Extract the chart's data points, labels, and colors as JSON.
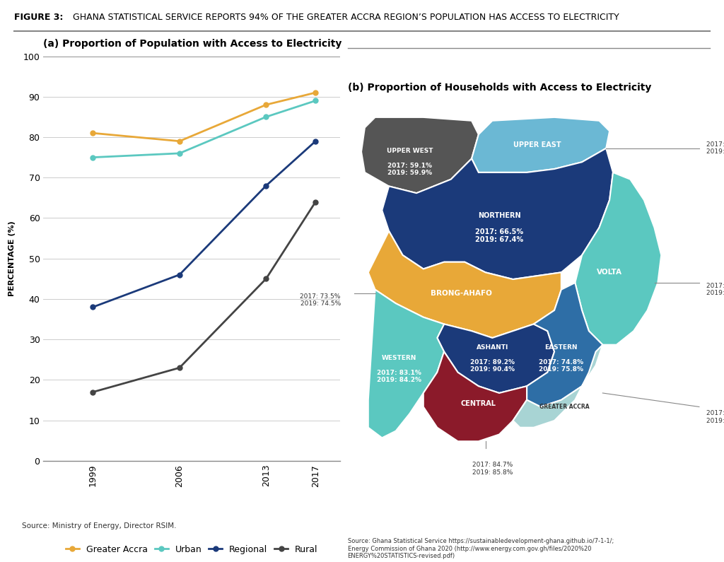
{
  "title_bold": "FIGURE 3:",
  "title_rest": " GHANA STATISTICAL SERVICE REPORTS 94% OF THE GREATER ACCRA REGION’S POPULATION HAS ACCESS TO ELECTRICITY",
  "panel_a_title": "(a) Proportion of Population with Access to Electricity",
  "panel_b_title": "(b) Proportion of Households with Access to Electricity",
  "line_years": [
    1999,
    2006,
    2013,
    2017
  ],
  "greater_accra_line": [
    81,
    79,
    88,
    91
  ],
  "urban": [
    75,
    76,
    85,
    89
  ],
  "regional": [
    38,
    46,
    68,
    79
  ],
  "rural": [
    17,
    23,
    45,
    64
  ],
  "line_colors": {
    "Greater Accra": "#E8A838",
    "Urban": "#5BC8C0",
    "Regional": "#1B3A7A",
    "Rural": "#444444"
  },
  "ylabel": "PERCENTAGE (%)",
  "source_a": "Source: Ministry of Energy, Director RSIM.",
  "bg_color": "#FFFFFF",
  "region_colors": {
    "UPPER WEST": "#555555",
    "UPPER EAST": "#6BB8D4",
    "NORTHERN": "#1B3A7A",
    "BRONG-AHAFO": "#E8A838",
    "VOLTA": "#5BC8C0",
    "ASHANTI": "#1B3A7A",
    "EASTERN": "#2E6EA6",
    "WESTERN": "#5BC8C0",
    "CENTRAL": "#8B1A2A",
    "GREATER ACCRA": "#A8D4D4"
  }
}
